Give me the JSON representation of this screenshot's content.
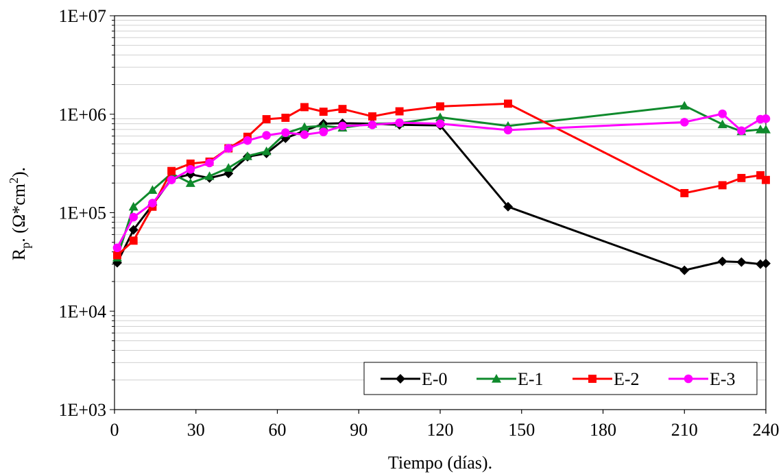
{
  "chart_data": {
    "type": "line",
    "title": "",
    "xlabel": "Tiempo (días).",
    "ylabel_main": "R",
    "ylabel_sub": "p",
    "ylabel_mid": ". (Ω*cm",
    "ylabel_sup": "2",
    "ylabel_end": ").",
    "xlim": [
      0,
      240
    ],
    "xticks": [
      0,
      30,
      60,
      90,
      120,
      150,
      180,
      210,
      240
    ],
    "ylim": [
      1000,
      10000000
    ],
    "yscale": "log",
    "yticks": [
      {
        "value": 1000,
        "label": "1E+03"
      },
      {
        "value": 10000,
        "label": "1E+04"
      },
      {
        "value": 100000,
        "label": "1E+05"
      },
      {
        "value": 1000000,
        "label": "1E+06"
      },
      {
        "value": 10000000,
        "label": "1E+07"
      }
    ],
    "grid": "horizontal minor",
    "legend_position": "bottom-right",
    "series": [
      {
        "name": "E-0",
        "color": "#000000",
        "marker": "diamond",
        "x": [
          1,
          7,
          14,
          21,
          28,
          35,
          42,
          49,
          56,
          63,
          70,
          77,
          84,
          95,
          105,
          120,
          145,
          210,
          224,
          231,
          238,
          240
        ],
        "y": [
          31000,
          67000,
          120000,
          220000,
          245000,
          225000,
          250000,
          370000,
          400000,
          570000,
          680000,
          800000,
          810000,
          800000,
          780000,
          770000,
          115000,
          26000,
          32000,
          31500,
          30000,
          30500
        ]
      },
      {
        "name": "E-1",
        "color": "#0f8a2c",
        "marker": "triangle",
        "x": [
          1,
          7,
          14,
          21,
          28,
          35,
          42,
          49,
          56,
          63,
          70,
          77,
          84,
          95,
          105,
          120,
          145,
          210,
          224,
          231,
          238,
          240
        ],
        "y": [
          35000,
          115000,
          170000,
          250000,
          200000,
          235000,
          285000,
          375000,
          420000,
          640000,
          740000,
          760000,
          730000,
          800000,
          810000,
          930000,
          760000,
          1220000,
          790000,
          670000,
          700000,
          700000
        ]
      },
      {
        "name": "E-2",
        "color": "#ff0000",
        "marker": "square",
        "x": [
          1,
          7,
          14,
          21,
          28,
          35,
          42,
          49,
          56,
          63,
          70,
          77,
          84,
          95,
          105,
          120,
          145,
          210,
          224,
          231,
          238,
          240
        ],
        "y": [
          37000,
          52000,
          115000,
          265000,
          315000,
          330000,
          450000,
          590000,
          890000,
          920000,
          1180000,
          1060000,
          1130000,
          950000,
          1070000,
          1200000,
          1280000,
          158000,
          190000,
          225000,
          240000,
          215000
        ]
      },
      {
        "name": "E-3",
        "color": "#ff00ff",
        "marker": "circle",
        "x": [
          1,
          7,
          14,
          21,
          28,
          35,
          42,
          49,
          56,
          63,
          70,
          77,
          84,
          95,
          105,
          120,
          145,
          210,
          224,
          231,
          238,
          240
        ],
        "y": [
          44000,
          90000,
          125000,
          215000,
          275000,
          320000,
          450000,
          540000,
          610000,
          650000,
          620000,
          660000,
          760000,
          780000,
          820000,
          800000,
          690000,
          830000,
          1010000,
          680000,
          890000,
          900000
        ]
      }
    ]
  }
}
